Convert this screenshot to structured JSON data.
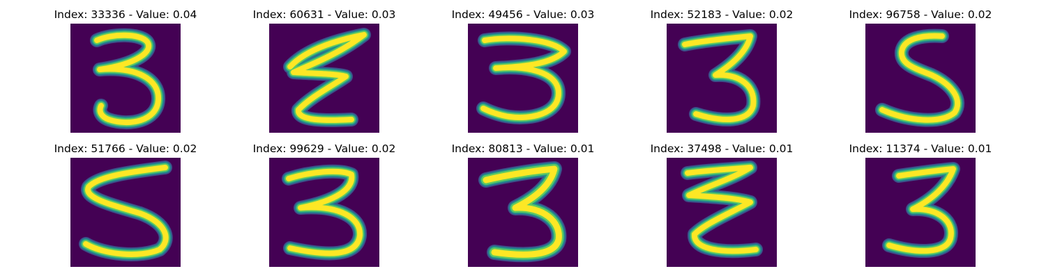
{
  "colors": {
    "background": "#440154",
    "stroke_core": "#fde725",
    "stroke_mid": "#5ec962",
    "stroke_edge": "#21918c",
    "stroke_outer": "#3b528b"
  },
  "panels": [
    {
      "title": "Index: 33336 - Value: 0.04",
      "digit_shape": "3"
    },
    {
      "title": "Index: 60631 - Value: 0.03",
      "digit_shape": "3"
    },
    {
      "title": "Index: 49456 - Value: 0.03",
      "digit_shape": "3"
    },
    {
      "title": "Index: 52183 - Value: 0.02",
      "digit_shape": "3"
    },
    {
      "title": "Index: 96758 - Value: 0.02",
      "digit_shape": "5"
    },
    {
      "title": "Index: 51766 - Value: 0.02",
      "digit_shape": "5"
    },
    {
      "title": "Index: 99629 - Value: 0.02",
      "digit_shape": "3"
    },
    {
      "title": "Index: 80813 - Value: 0.01",
      "digit_shape": "3"
    },
    {
      "title": "Index: 37498 - Value: 0.01",
      "digit_shape": "3"
    },
    {
      "title": "Index: 11374 - Value: 0.01",
      "digit_shape": "3"
    }
  ]
}
